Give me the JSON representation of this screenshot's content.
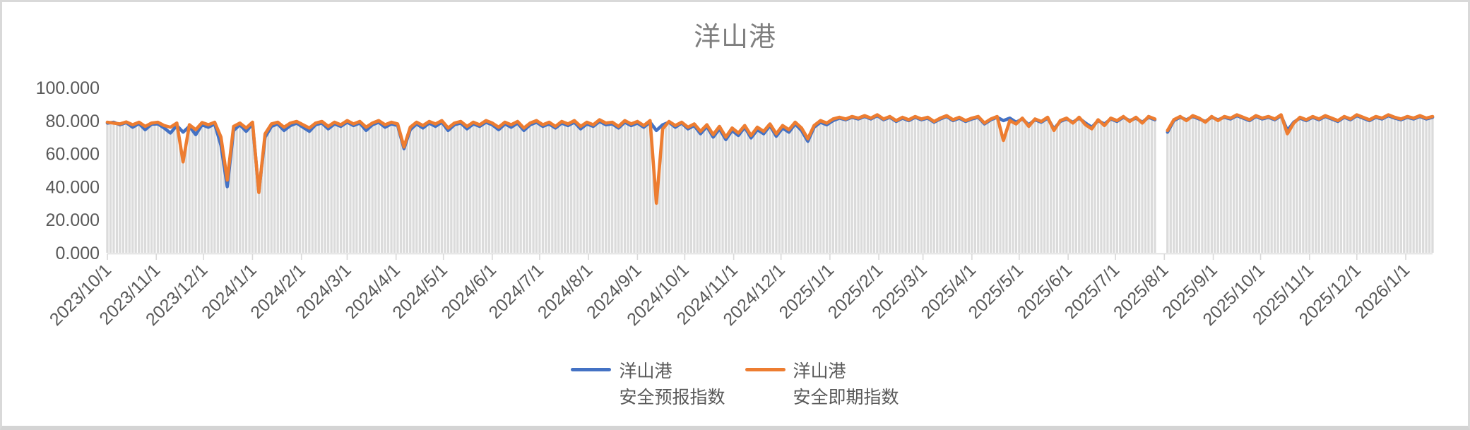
{
  "title": "洋山港",
  "colors": {
    "forecast_line": "#4472C4",
    "spot_line": "#ED7D31",
    "background_bars": "#DBDBDB",
    "axis_text": "#595959",
    "title_text": "#7F7F7F",
    "axis_line": "#D9D9D9",
    "frame_border": "#D9D9D9",
    "plot_background": "#FFFFFF"
  },
  "legend": [
    {
      "line1": "洋山港",
      "line2": "安全预报指数",
      "series_key": "forecast"
    },
    {
      "line1": "洋山港",
      "line2": "安全即期指数",
      "series_key": "spot"
    }
  ],
  "chart_data": {
    "type": "line",
    "title": "洋山港",
    "xlabel": "",
    "ylabel": "",
    "ylim": [
      0,
      100
    ],
    "grid": false,
    "legend_position": "bottom",
    "background_bars": true,
    "x_start_date": "2023/10/1",
    "x_step_days": 4,
    "x_tick_labels": [
      "2023/10/1",
      "2023/11/1",
      "2023/12/1",
      "2024/1/1",
      "2024/2/1",
      "2024/3/1",
      "2024/4/1",
      "2024/5/1",
      "2024/6/1",
      "2024/7/1",
      "2024/8/1",
      "2024/9/1",
      "2024/10/1",
      "2024/11/1",
      "2024/12/1",
      "2025/1/1",
      "2025/2/1",
      "2025/3/1",
      "2025/4/1",
      "2025/5/1",
      "2025/6/1",
      "2025/7/1",
      "2025/8/1",
      "2025/9/1",
      "2025/10/1",
      "2025/11/1",
      "2025/12/1",
      "2026/1/1"
    ],
    "y_ticks": [
      {
        "value": 100,
        "label": "100.000"
      },
      {
        "value": 80,
        "label": "80.000"
      },
      {
        "value": 60,
        "label": "60.000"
      },
      {
        "value": 40,
        "label": "40.000"
      },
      {
        "value": 20,
        "label": "20.000"
      },
      {
        "value": 0,
        "label": "0.000"
      }
    ],
    "series": [
      {
        "name": "洋山港 安全预报指数",
        "key": "forecast",
        "color": "#4472C4",
        "values": [
          78.5,
          79.0,
          77.5,
          78.8,
          76.0,
          78.2,
          74.5,
          77.8,
          78.0,
          75.5,
          72.5,
          77.0,
          73.0,
          76.5,
          71.5,
          77.5,
          76.0,
          78.0,
          65.0,
          40.0,
          74.0,
          77.5,
          73.5,
          78.0,
          37.0,
          70.0,
          76.5,
          78.0,
          74.0,
          77.0,
          78.5,
          76.0,
          73.5,
          77.5,
          78.5,
          75.0,
          78.0,
          76.5,
          79.0,
          77.0,
          78.5,
          74.0,
          77.5,
          79.0,
          76.0,
          78.0,
          77.0,
          63.0,
          74.5,
          78.0,
          75.5,
          78.5,
          76.5,
          79.0,
          74.0,
          77.5,
          78.5,
          75.0,
          78.0,
          76.5,
          79.0,
          77.5,
          74.5,
          78.0,
          76.0,
          78.5,
          74.0,
          77.5,
          79.0,
          76.5,
          78.0,
          75.5,
          78.5,
          77.0,
          79.0,
          75.0,
          78.0,
          76.5,
          79.5,
          77.5,
          78.0,
          75.5,
          79.0,
          77.0,
          78.5,
          76.0,
          79.0,
          74.0,
          77.5,
          79.0,
          76.0,
          78.5,
          75.0,
          77.0,
          72.0,
          76.5,
          70.0,
          75.0,
          68.5,
          74.0,
          71.0,
          76.0,
          69.5,
          74.5,
          72.0,
          77.0,
          70.5,
          75.5,
          73.0,
          78.0,
          74.0,
          67.5,
          76.0,
          79.0,
          77.5,
          80.0,
          81.5,
          80.5,
          82.0,
          81.0,
          82.5,
          81.0,
          83.0,
          80.5,
          82.0,
          79.5,
          81.5,
          80.0,
          82.0,
          80.5,
          81.5,
          79.0,
          81.0,
          82.5,
          80.0,
          81.5,
          79.5,
          81.0,
          82.0,
          78.0,
          80.5,
          82.0,
          80.0,
          81.5,
          79.0,
          81.0,
          77.5,
          80.5,
          79.0,
          81.5,
          75.0,
          79.5,
          81.0,
          79.0,
          81.5,
          78.5,
          76.0,
          80.0,
          78.0,
          81.0,
          79.5,
          82.0,
          80.0,
          81.5,
          79.0,
          82.0,
          80.5,
          null,
          73.0,
          80.0,
          82.0,
          80.5,
          82.5,
          81.0,
          79.5,
          82.0,
          80.5,
          82.0,
          81.0,
          83.0,
          81.5,
          80.0,
          82.5,
          81.0,
          82.0,
          80.5,
          83.0,
          74.0,
          79.0,
          81.5,
          80.0,
          82.0,
          80.5,
          82.5,
          81.0,
          79.5,
          82.0,
          80.5,
          83.0,
          81.5,
          80.0,
          82.0,
          81.0,
          83.0,
          81.5,
          80.5,
          82.0,
          81.0,
          82.5,
          81.0,
          82.0
        ]
      },
      {
        "name": "洋山港 安全即期指数",
        "key": "spot",
        "color": "#ED7D31",
        "values": [
          79.0,
          78.5,
          78.0,
          79.2,
          77.5,
          79.0,
          76.5,
          78.5,
          79.0,
          77.0,
          76.0,
          78.5,
          55.0,
          77.5,
          74.5,
          78.8,
          77.5,
          79.0,
          70.0,
          44.0,
          76.5,
          78.5,
          75.5,
          79.0,
          36.5,
          72.0,
          78.0,
          79.0,
          76.0,
          78.5,
          79.5,
          77.5,
          75.5,
          78.5,
          79.5,
          76.5,
          79.0,
          77.5,
          80.0,
          78.0,
          79.5,
          76.0,
          78.5,
          80.0,
          77.5,
          79.0,
          78.0,
          64.0,
          76.0,
          79.0,
          77.0,
          79.5,
          78.0,
          80.0,
          75.5,
          78.5,
          79.5,
          76.5,
          79.0,
          77.5,
          80.0,
          78.5,
          76.0,
          79.0,
          77.5,
          79.5,
          75.5,
          78.5,
          80.0,
          77.5,
          79.0,
          76.5,
          79.5,
          78.0,
          80.0,
          76.5,
          79.0,
          77.5,
          80.5,
          78.5,
          79.0,
          76.5,
          80.0,
          78.0,
          79.5,
          77.0,
          80.0,
          30.0,
          75.0,
          79.5,
          77.0,
          79.0,
          76.0,
          78.0,
          73.5,
          77.5,
          71.5,
          76.5,
          70.0,
          75.5,
          72.5,
          77.0,
          71.0,
          76.0,
          73.5,
          78.0,
          72.0,
          77.0,
          74.5,
          79.0,
          75.5,
          69.0,
          77.0,
          80.0,
          78.5,
          81.0,
          82.0,
          81.0,
          82.5,
          81.5,
          83.0,
          81.5,
          83.5,
          81.0,
          82.5,
          80.0,
          82.0,
          80.5,
          82.5,
          81.0,
          82.0,
          79.5,
          81.5,
          83.0,
          80.5,
          82.0,
          80.0,
          81.5,
          82.5,
          78.5,
          81.0,
          82.5,
          68.0,
          80.0,
          78.0,
          81.5,
          76.5,
          81.0,
          79.5,
          82.0,
          74.0,
          80.0,
          81.5,
          78.5,
          82.0,
          77.5,
          75.0,
          80.5,
          77.0,
          81.5,
          80.0,
          82.5,
          79.5,
          82.0,
          78.5,
          82.5,
          81.0,
          null,
          74.0,
          80.5,
          82.5,
          80.0,
          83.0,
          81.5,
          79.0,
          82.5,
          80.0,
          82.5,
          81.5,
          83.5,
          82.0,
          80.5,
          83.0,
          81.5,
          82.5,
          81.0,
          83.5,
          72.0,
          78.5,
          82.0,
          80.5,
          82.5,
          81.0,
          83.0,
          81.5,
          80.0,
          82.5,
          81.0,
          83.5,
          82.0,
          80.5,
          82.5,
          81.5,
          83.5,
          82.0,
          81.0,
          82.5,
          81.5,
          83.0,
          81.5,
          82.5
        ]
      }
    ]
  }
}
